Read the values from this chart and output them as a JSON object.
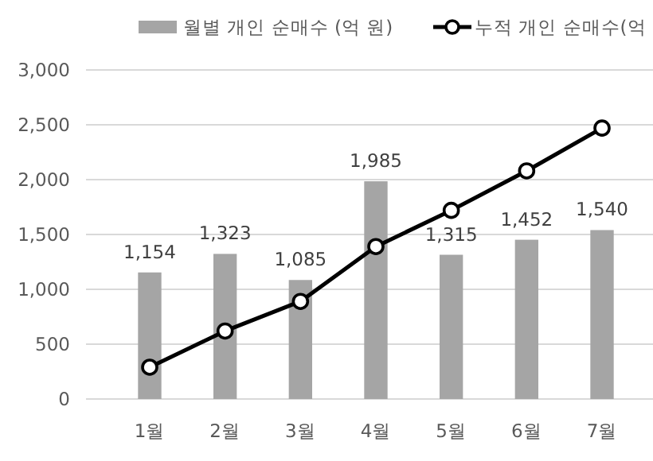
{
  "chart_data": {
    "type": "bar",
    "categories": [
      "1월",
      "2월",
      "3월",
      "4월",
      "5월",
      "6월",
      "7월"
    ],
    "series": [
      {
        "name": "월별 개인 순매수 (억 원)",
        "color": "#a5a5a5",
        "values": [
          1154,
          1323,
          1085,
          1985,
          1315,
          1452,
          1540
        ]
      },
      {
        "name": "누적 개인 순매수(억",
        "type": "line",
        "color": "#000000",
        "values": [
          290,
          620,
          890,
          1390,
          1720,
          2080,
          2470
        ]
      }
    ],
    "ylim": [
      0,
      3000
    ],
    "yticks": [
      {
        "value": 0,
        "label": "0"
      },
      {
        "value": 500,
        "label": "500"
      },
      {
        "value": 1000,
        "label": "1,000"
      },
      {
        "value": 1500,
        "label": "1,500"
      },
      {
        "value": 2000,
        "label": "2,000"
      },
      {
        "value": 2500,
        "label": "2,500"
      },
      {
        "value": 3000,
        "label": "3,000"
      }
    ],
    "grid": "y",
    "legend": "top",
    "marker": "circle",
    "value_labels": [
      "1,154",
      "1,323",
      "1,085",
      "1,985",
      "1,315",
      "1,452",
      "1,540"
    ]
  }
}
